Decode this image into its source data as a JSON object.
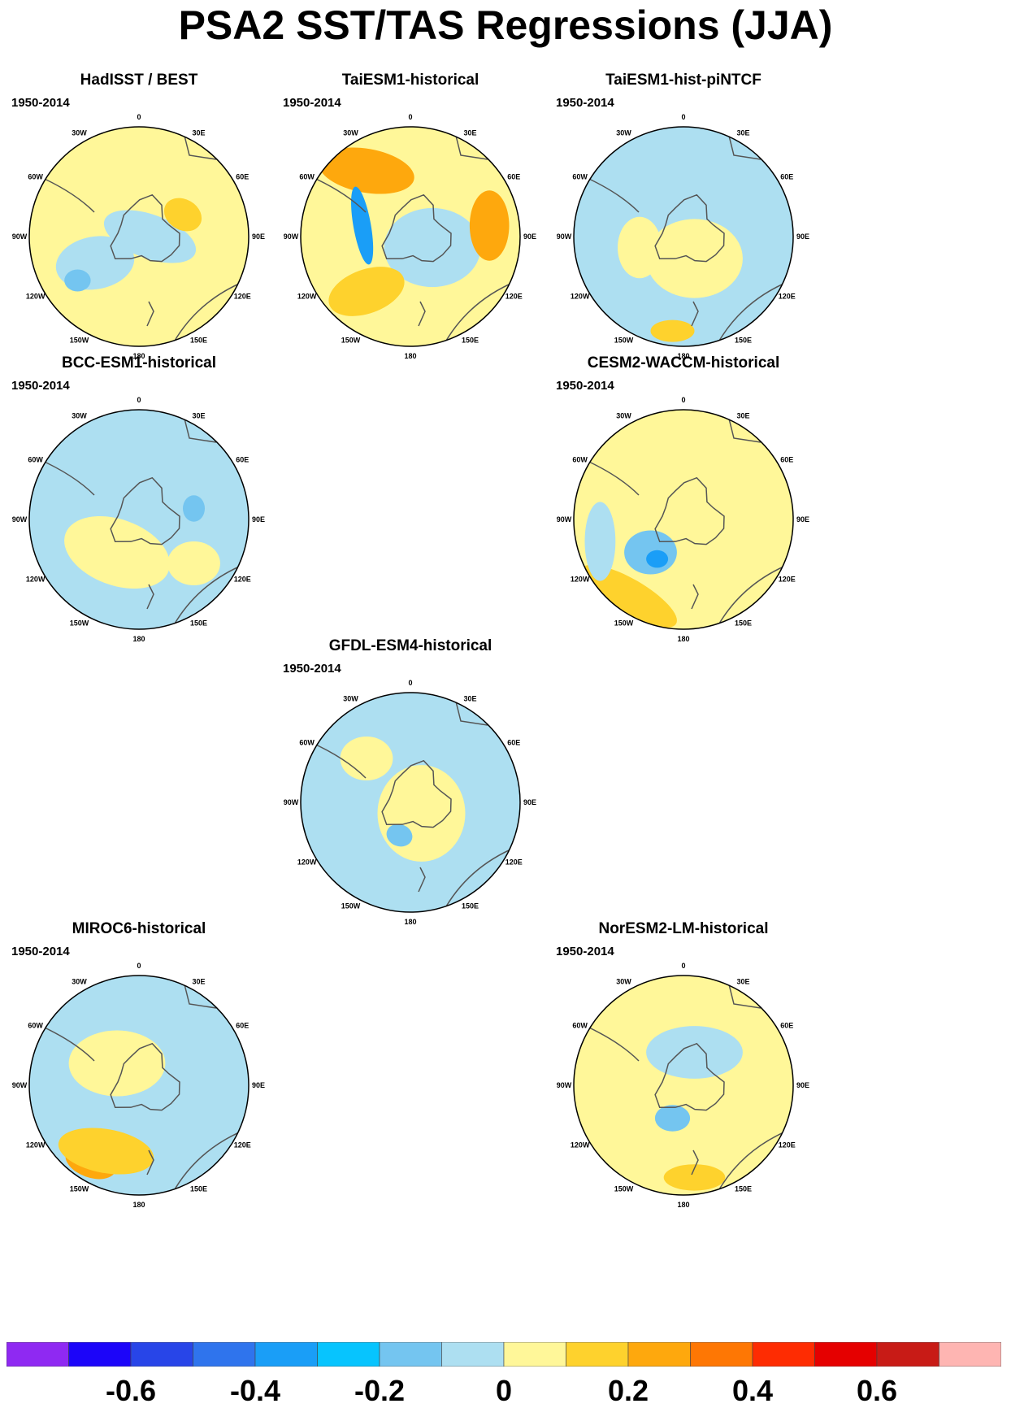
{
  "title": "PSA2 SST/TAS Regressions (JJA)",
  "period": "1950-2014",
  "longitude_labels": [
    "0",
    "30E",
    "60E",
    "90E",
    "120E",
    "150E",
    "180",
    "150W",
    "120W",
    "90W",
    "60W",
    "30W"
  ],
  "panels": [
    {
      "title": "HadISST / BEST",
      "years": "1950-2014",
      "dominant": "positive-weak",
      "base": "#fff799",
      "patches": [
        {
          "color": "#addff1"
        },
        {
          "color": "#addff1"
        },
        {
          "color": "#fed22d"
        },
        {
          "color": "#74c5f0"
        }
      ]
    },
    {
      "title": "TaiESM1-historical",
      "years": "1950-2014",
      "dominant": "mixed-strong",
      "base": "#fff799",
      "patches": [
        {
          "color": "#fea80d"
        },
        {
          "color": "#addff1"
        },
        {
          "color": "#fed22d"
        },
        {
          "color": "#1a9ef7"
        },
        {
          "color": "#fea80d"
        }
      ]
    },
    {
      "title": "TaiESM1-hist-piNTCF",
      "years": "1950-2014",
      "dominant": "negative-weak",
      "base": "#addff1",
      "patches": [
        {
          "color": "#fff799"
        },
        {
          "color": "#fff799"
        },
        {
          "color": "#fed22d"
        }
      ]
    },
    {
      "title": "BCC-ESM1-historical",
      "years": "1950-2014",
      "dominant": "negative-weak",
      "base": "#addff1",
      "patches": [
        {
          "color": "#fff799"
        },
        {
          "color": "#fff799"
        },
        {
          "color": "#74c5f0"
        }
      ]
    },
    {
      "title": "CESM2-WACCM-historical",
      "years": "1950-2014",
      "dominant": "positive-weak",
      "base": "#fff799",
      "patches": [
        {
          "color": "#fed22d"
        },
        {
          "color": "#74c5f0"
        },
        {
          "color": "#1a9ef7"
        },
        {
          "color": "#addff1"
        }
      ]
    },
    {
      "title": "GFDL-ESM4-historical",
      "years": "1950-2014",
      "dominant": "mixed-weak",
      "base": "#addff1",
      "patches": [
        {
          "color": "#fff799"
        },
        {
          "color": "#fff799"
        },
        {
          "color": "#74c5f0"
        }
      ]
    },
    {
      "title": "MIROC6-historical",
      "years": "1950-2014",
      "dominant": "negative-weak",
      "base": "#addff1",
      "patches": [
        {
          "color": "#fff799"
        },
        {
          "color": "#fea80d"
        },
        {
          "color": "#fed22d"
        }
      ]
    },
    {
      "title": "NorESM2-LM-historical",
      "years": "1950-2014",
      "dominant": "mixed-weak",
      "base": "#fff799",
      "patches": [
        {
          "color": "#addff1"
        },
        {
          "color": "#74c5f0"
        },
        {
          "color": "#fed22d"
        }
      ]
    }
  ],
  "colorbar": {
    "colors": [
      "#8f29f2",
      "#1c05f9",
      "#2845e8",
      "#2f74ed",
      "#1a9ef7",
      "#07c4fe",
      "#74c5f0",
      "#addff1",
      "#fff799",
      "#fed22d",
      "#fea80d",
      "#fe7704",
      "#fe2c02",
      "#e50000",
      "#c81b16",
      "#feb5b2"
    ],
    "labels": [
      "-0.6",
      "-0.4",
      "-0.2",
      "0",
      "0.2",
      "0.4",
      "0.6"
    ],
    "units": ""
  },
  "chart_data": {
    "type": "heatmap",
    "title": "PSA2 SST/TAS Regressions (JJA)",
    "projection": "south-polar-stereographic",
    "period": "1950-2014",
    "season": "JJA",
    "colorbar_levels": [
      "-0.6",
      "-0.4",
      "-0.2",
      "0",
      "0.2",
      "0.4",
      "0.6"
    ],
    "panels": [
      "HadISST / BEST",
      "TaiESM1-historical",
      "TaiESM1-hist-piNTCF",
      "BCC-ESM1-historical",
      "CESM2-WACCM-historical",
      "GFDL-ESM4-historical",
      "MIROC6-historical",
      "NorESM2-LM-historical"
    ]
  }
}
